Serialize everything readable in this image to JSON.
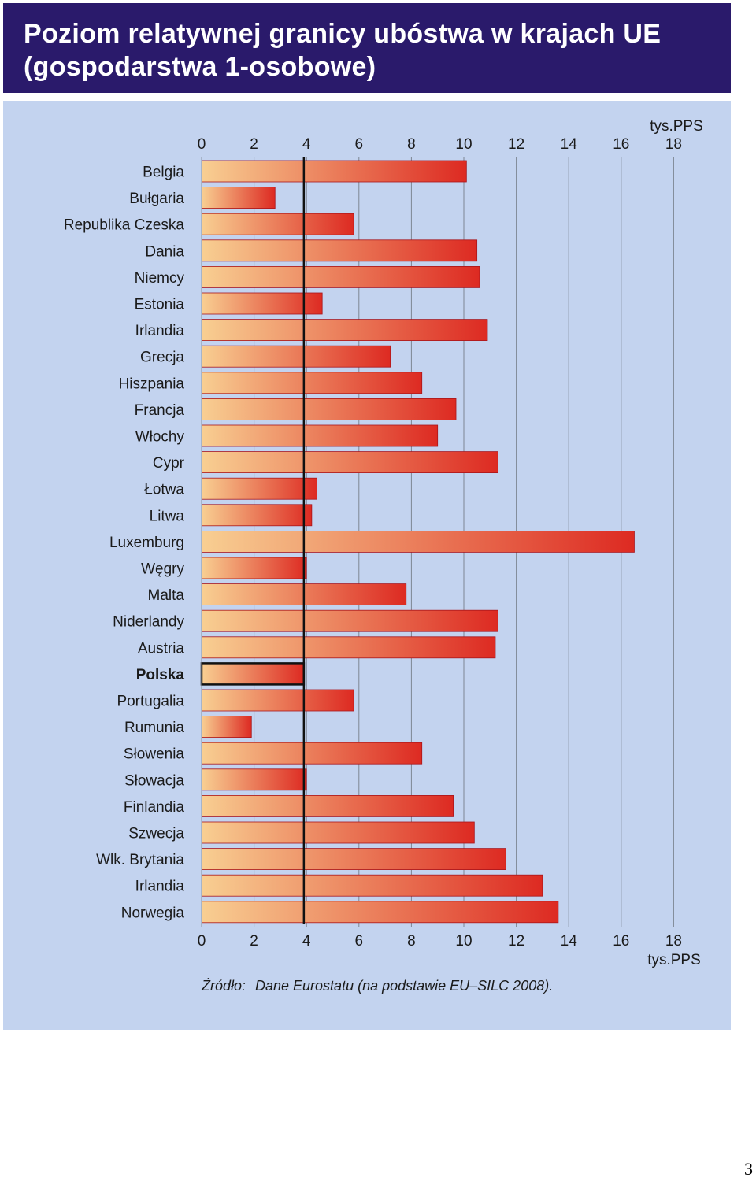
{
  "title_lines": [
    "Poziom relatywnej granicy ubóstwa w krajach UE",
    "(gospodarstwa 1-osobowe)"
  ],
  "page_number": "3",
  "chart_data": {
    "type": "bar",
    "orientation": "horizontal",
    "title": "Poziom relatywnej granicy ubóstwa w krajach UE (gospodarstwa 1-osobowe)",
    "unit": "tys.PPS",
    "categories": [
      "Belgia",
      "Bułgaria",
      "Republika Czeska",
      "Dania",
      "Niemcy",
      "Estonia",
      "Irlandia",
      "Grecja",
      "Hiszpania",
      "Francja",
      "Włochy",
      "Cypr",
      "Łotwa",
      "Litwa",
      "Luxemburg",
      "Węgry",
      "Malta",
      "Niderlandy",
      "Austria",
      "Polska",
      "Portugalia",
      "Rumunia",
      "Słowenia",
      "Słowacja",
      "Finlandia",
      "Szwecja",
      "Wlk. Brytania",
      "Irlandia",
      "Norwegia"
    ],
    "values": [
      10.1,
      2.8,
      5.8,
      10.5,
      10.6,
      4.6,
      10.9,
      7.2,
      8.4,
      9.7,
      9.0,
      11.3,
      4.4,
      4.2,
      16.5,
      4.0,
      7.8,
      11.3,
      11.2,
      3.9,
      5.8,
      1.9,
      8.4,
      4.0,
      9.6,
      10.4,
      11.6,
      13.0,
      13.6
    ],
    "highlight": "Polska",
    "reference_line": 3.9,
    "xticks": [
      "0",
      "2",
      "4",
      "6",
      "8",
      "10",
      "12",
      "14",
      "16",
      "18"
    ],
    "xlim": [
      0,
      18
    ],
    "grid": true,
    "source_label": "Źródło:",
    "source_text": "Dane Eurostatu (na podstawie EU–SILC 2008).",
    "colors": {
      "panel": "#c3d3ef",
      "header": "#2a1a6b",
      "bar_start": "#f8cf92",
      "bar_end": "#dd2a22",
      "bar_border": "#a8151b",
      "gridline": "#7d8693",
      "reference_line": "#111111"
    }
  }
}
